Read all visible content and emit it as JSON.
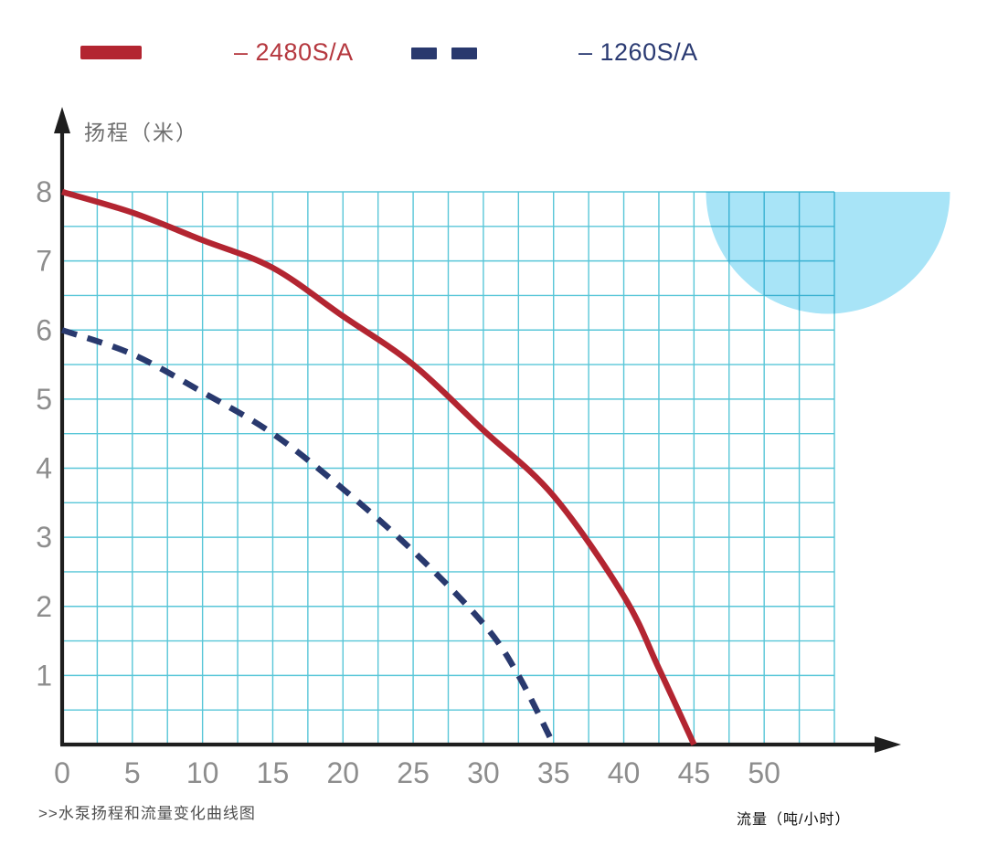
{
  "legend": {
    "items": [
      {
        "label": "– 2480S/A",
        "series": "2480S/A",
        "swatch": "solid-line",
        "color": "#b5383f"
      },
      {
        "label": "– 1260S/A",
        "series": "1260S/A",
        "swatch": "dashed-line",
        "color": "#2a3a72"
      }
    ]
  },
  "caption": ">>水泵扬程和流量变化曲线图",
  "colors": {
    "red_line": "#b32531",
    "navy_line": "#29396e",
    "grid": "#58c6d8",
    "circle_fill": "#a8e4f7",
    "axis": "#1e1e1e",
    "tick_label": "#8d8d8d",
    "axis_title": "#6e6e6e"
  },
  "chart_data": {
    "type": "line",
    "xlabel": "流量（吨/小时）",
    "ylabel": "扬程（米）",
    "xlim": [
      0,
      55
    ],
    "ylim": [
      0,
      8
    ],
    "x_ticks": [
      0,
      5,
      10,
      15,
      20,
      25,
      30,
      35,
      40,
      45,
      50
    ],
    "y_ticks": [
      1,
      2,
      3,
      4,
      5,
      6,
      7,
      8
    ],
    "x_minor_step": 2.5,
    "y_minor_step": 0.5,
    "grid": true,
    "legend_position": "top",
    "series": [
      {
        "name": "2480S/A",
        "style": "solid",
        "color": "#b32531",
        "points": [
          [
            0,
            8
          ],
          [
            5,
            7.7
          ],
          [
            10,
            7.3
          ],
          [
            15,
            6.9
          ],
          [
            20,
            6.2
          ],
          [
            25,
            5.5
          ],
          [
            30,
            4.55
          ],
          [
            35,
            3.6
          ],
          [
            40,
            2.15
          ],
          [
            42.5,
            1.1
          ],
          [
            45,
            0
          ]
        ]
      },
      {
        "name": "1260S/A",
        "style": "dashed",
        "color": "#29396e",
        "points": [
          [
            0,
            6
          ],
          [
            5,
            5.65
          ],
          [
            10,
            5.1
          ],
          [
            15,
            4.5
          ],
          [
            20,
            3.7
          ],
          [
            25,
            2.8
          ],
          [
            30,
            1.75
          ],
          [
            32.5,
            1.0
          ],
          [
            35,
            0
          ]
        ]
      }
    ],
    "annotations": [
      {
        "type": "decorative-semicircle",
        "color": "#a8e4f7"
      }
    ]
  }
}
